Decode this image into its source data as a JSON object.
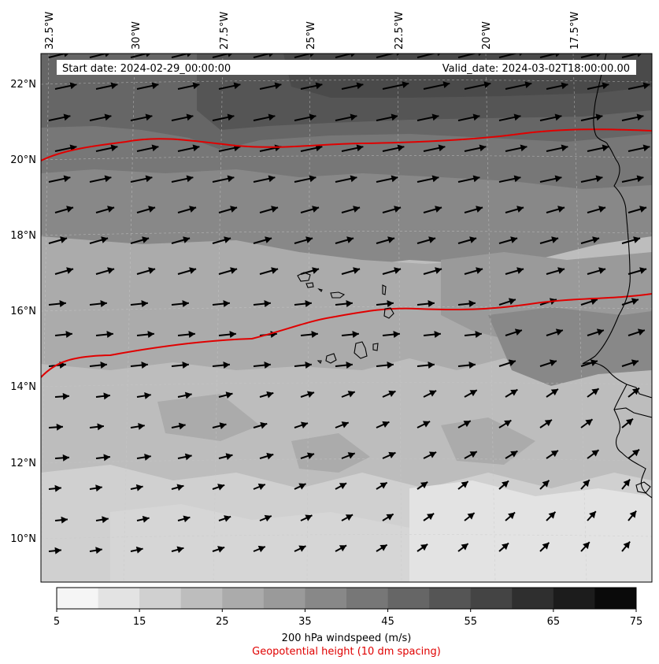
{
  "map": {
    "start_date_label": "Start date: 2024-02-29_00:00:00",
    "valid_date_label": "Valid_date: 2024-03-02T18:00:00.00",
    "lon_labels": [
      "32.5°W",
      "30°W",
      "27.5°W",
      "25°W",
      "22.5°W",
      "20°W",
      "17.5°W"
    ],
    "lat_labels": [
      "22°N",
      "20°N",
      "18°N",
      "16°N",
      "14°N",
      "12°N",
      "10°N"
    ]
  },
  "colorbar": {
    "ticks": [
      "5",
      "15",
      "25",
      "35",
      "45",
      "55",
      "65",
      "75"
    ],
    "levels": [
      "#f5f5f5",
      "#e3e3e3",
      "#d0d0d0",
      "#bdbdbd",
      "#ababab",
      "#9a9a9a",
      "#888888",
      "#777777",
      "#666666",
      "#555555",
      "#444444",
      "#2f2f2f",
      "#1c1c1c",
      "#0a0a0a"
    ],
    "title": "200 hPa windspeed (m/s)",
    "subtitle": "Geopotential height (10 dm spacing)"
  },
  "colors": {
    "contour": "#e00000",
    "coastline": "#000000",
    "arrow": "#000000"
  }
}
